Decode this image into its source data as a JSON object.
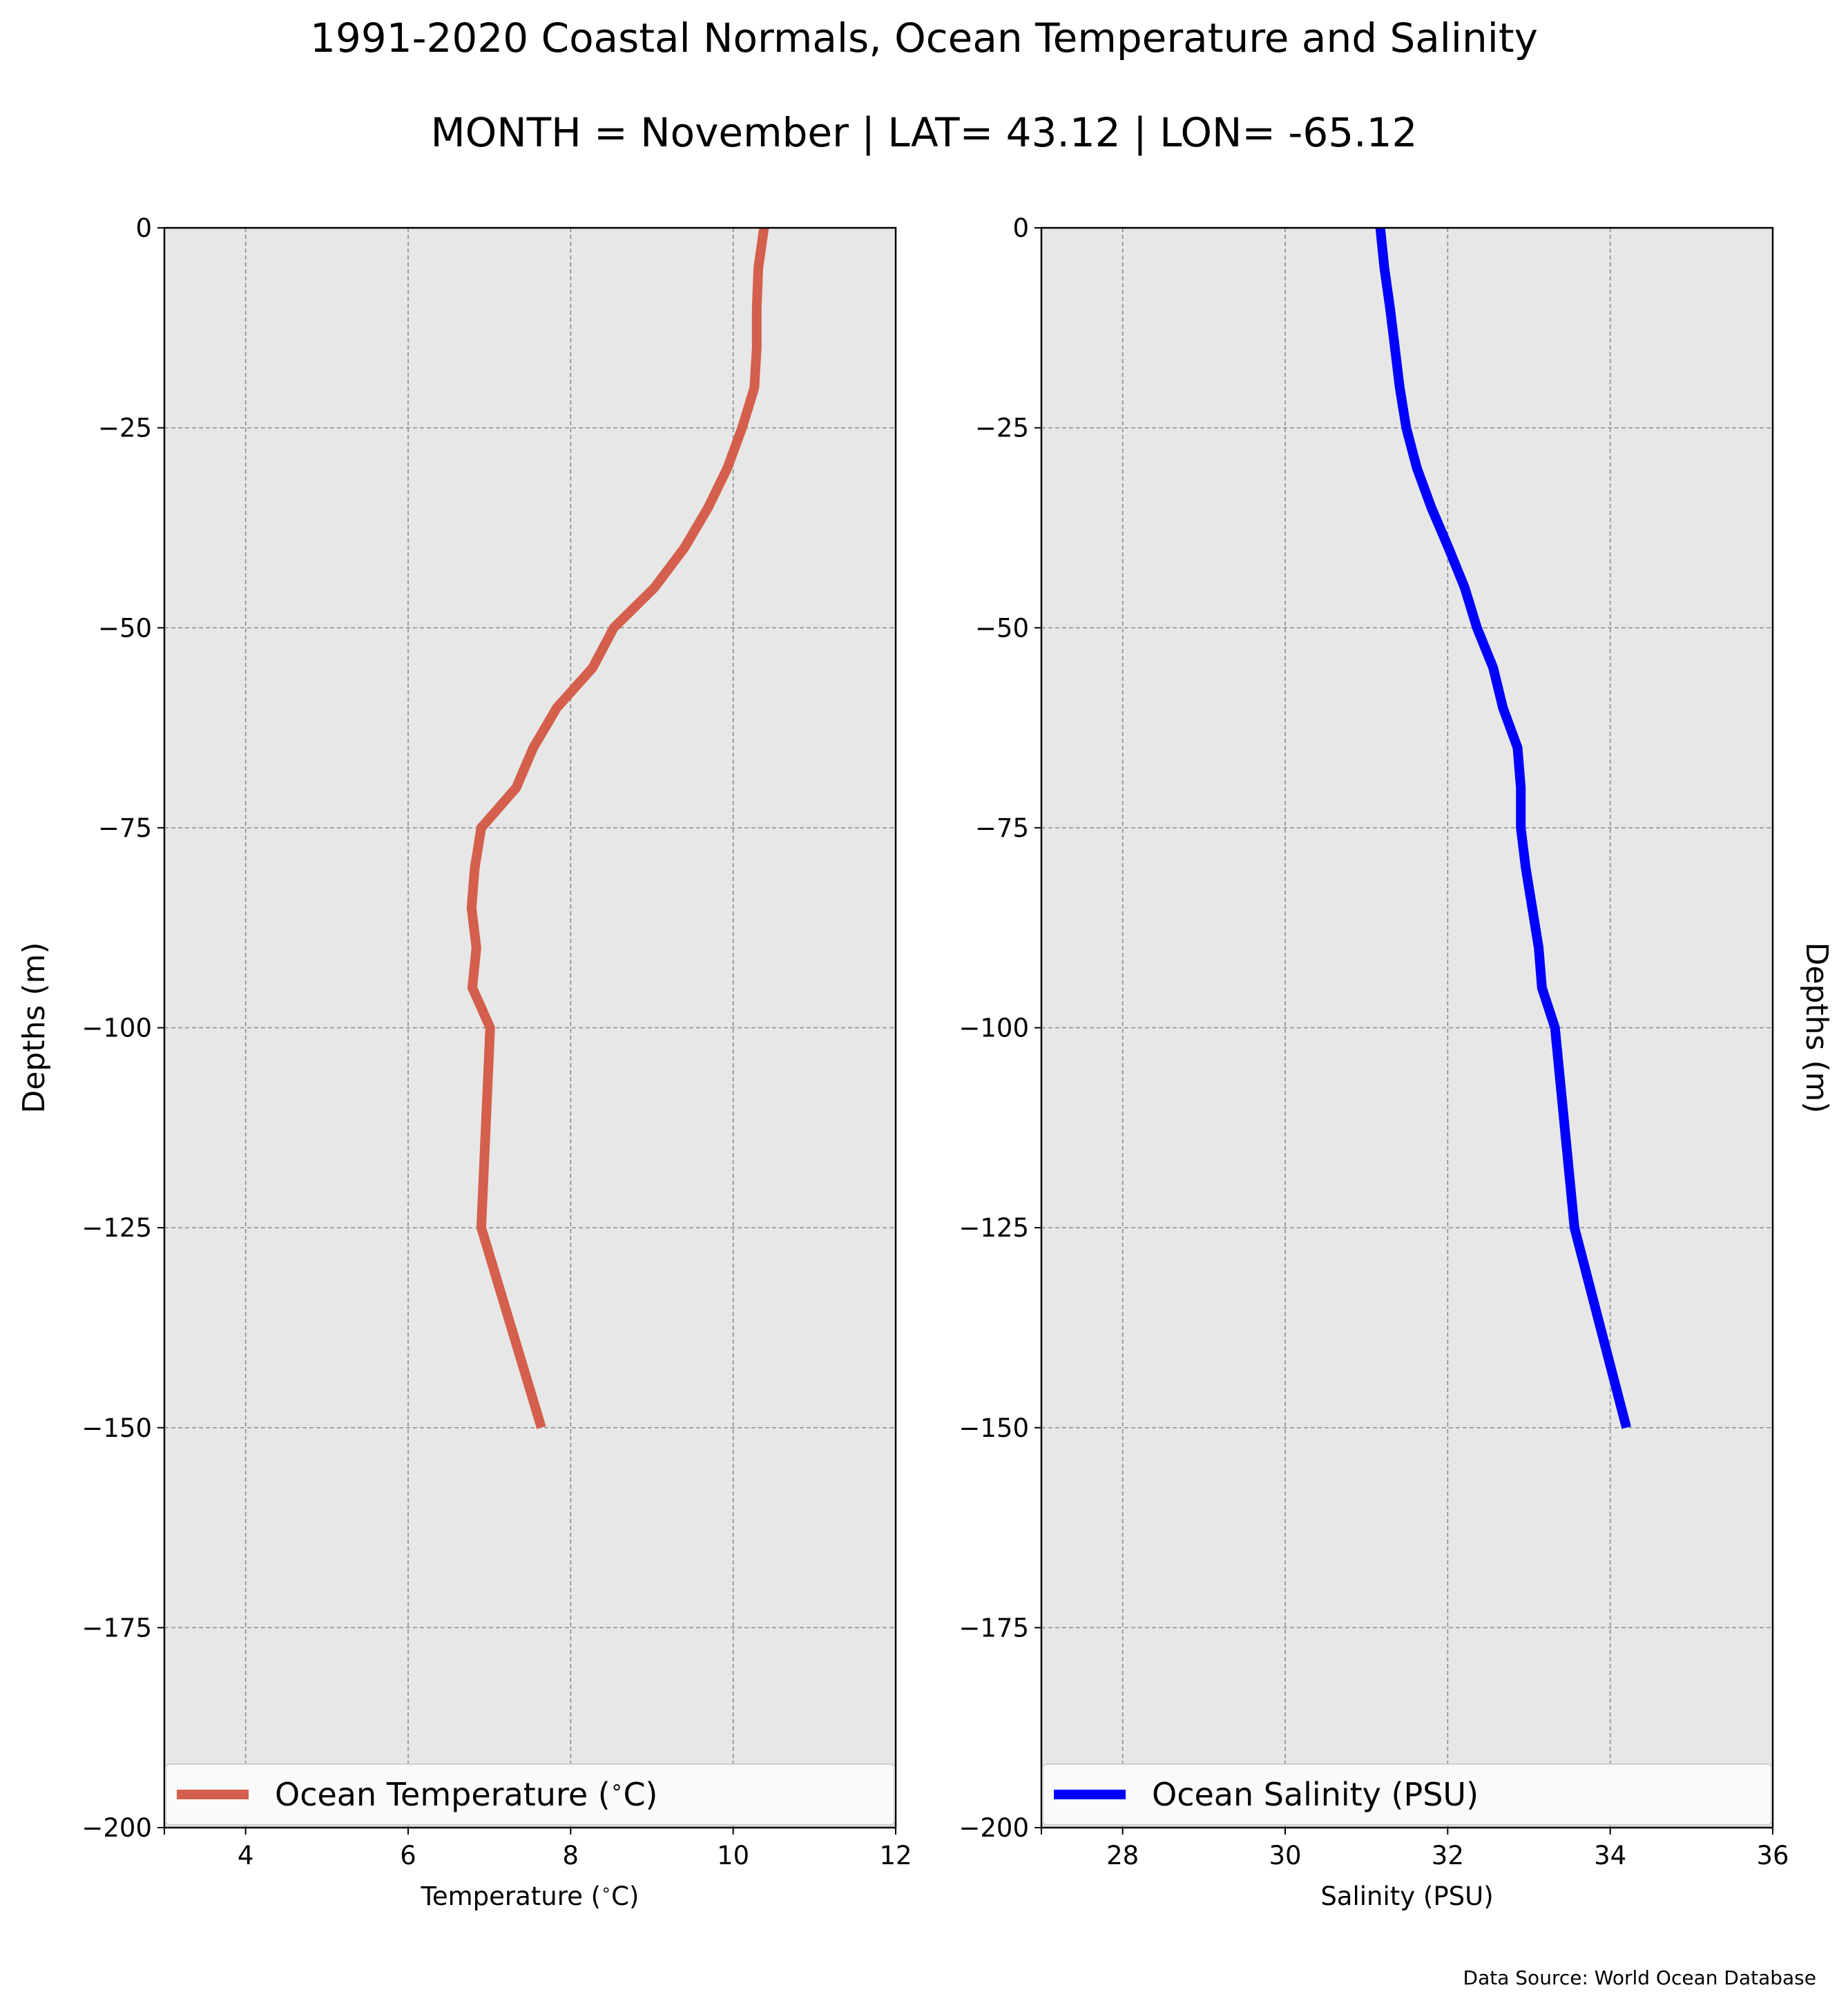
{
  "figure": {
    "title": "1991-2020 Coastal Normals, Ocean Temperature and Salinity",
    "subtitle": "MONTH = November | LAT= 43.12 | LON= -65.12",
    "source": "Data Source: World Ocean Database"
  },
  "colors": {
    "temperature": "#d45f4c",
    "salinity": "#0000ff",
    "plot_background": "#e7e7e7",
    "grid": "#8c8c8c"
  },
  "chart_data": [
    {
      "type": "line",
      "orientation": "vertical-profile",
      "xlabel": "Temperature ($^\\circ$C)",
      "ylabel": "Depths (m)",
      "ylabel_side": "left",
      "xlim": [
        3,
        12
      ],
      "ylim": [
        -200,
        0
      ],
      "xticks": [
        4,
        6,
        8,
        10,
        12
      ],
      "xtick_labels": [
        "4",
        "6",
        "8",
        "10",
        "12"
      ],
      "yticks": [
        0,
        -25,
        -50,
        -75,
        -100,
        -125,
        -150,
        -175,
        -200
      ],
      "ytick_labels": [
        "0",
        "−25",
        "−50",
        "−75",
        "−100",
        "−125",
        "−150",
        "−175",
        "−200"
      ],
      "grid": true,
      "legend_placement": "lower-center",
      "series": [
        {
          "name": "Ocean Temperature ($^\\circ$C)",
          "color": "#d45f4c",
          "depth": [
            0,
            -5,
            -10,
            -15,
            -20,
            -25,
            -30,
            -35,
            -40,
            -45,
            -50,
            -55,
            -60,
            -65,
            -70,
            -75,
            -80,
            -85,
            -90,
            -95,
            -100,
            -125,
            -150
          ],
          "values": [
            10.38,
            10.31,
            10.29,
            10.29,
            10.26,
            10.11,
            9.93,
            9.69,
            9.4,
            9.03,
            8.53,
            8.27,
            7.83,
            7.54,
            7.33,
            6.9,
            6.82,
            6.78,
            6.84,
            6.79,
            7.01,
            6.9,
            7.64
          ]
        }
      ]
    },
    {
      "type": "line",
      "orientation": "vertical-profile",
      "xlabel": "Salinity (PSU)",
      "ylabel": "Depths (m)",
      "ylabel_side": "right",
      "xlim": [
        27,
        36
      ],
      "ylim": [
        -200,
        0
      ],
      "xticks": [
        28,
        30,
        32,
        34,
        36
      ],
      "xtick_labels": [
        "28",
        "30",
        "32",
        "34",
        "36"
      ],
      "yticks": [
        0,
        -25,
        -50,
        -75,
        -100,
        -125,
        -150,
        -175,
        -200
      ],
      "ytick_labels": [
        "0",
        "−25",
        "−50",
        "−75",
        "−100",
        "−125",
        "−150",
        "−175",
        "−200"
      ],
      "grid": true,
      "legend_placement": "lower-center",
      "series": [
        {
          "name": "Ocean Salinity (PSU)",
          "color": "#0000ff",
          "depth": [
            0,
            -5,
            -10,
            -15,
            -20,
            -25,
            -30,
            -35,
            -40,
            -45,
            -50,
            -55,
            -60,
            -65,
            -70,
            -75,
            -80,
            -85,
            -90,
            -95,
            -100,
            -125,
            -150
          ],
          "values": [
            31.17,
            31.22,
            31.29,
            31.35,
            31.41,
            31.49,
            31.62,
            31.8,
            32.01,
            32.21,
            32.36,
            32.56,
            32.68,
            32.86,
            32.9,
            32.9,
            32.96,
            33.04,
            33.12,
            33.16,
            33.32,
            33.56,
            34.2
          ]
        }
      ]
    }
  ]
}
